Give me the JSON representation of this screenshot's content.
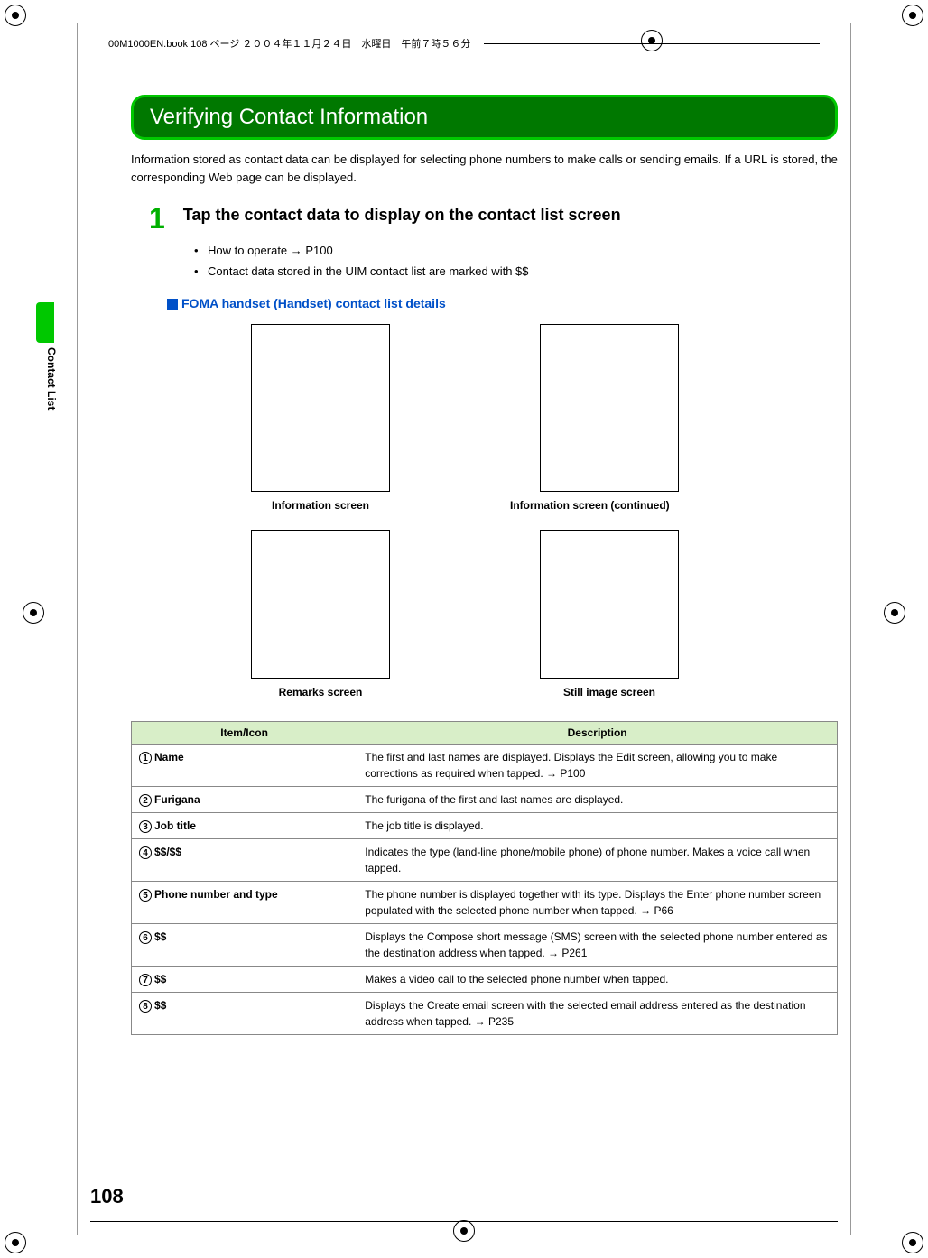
{
  "header": {
    "file_info": "00M1000EN.book  108 ページ  ２００４年１１月２４日　水曜日　午前７時５６分"
  },
  "side": {
    "tab_label": "Contact List"
  },
  "section": {
    "title": "Verifying Contact Information",
    "intro": "Information stored as contact data can be displayed for selecting phone numbers to make calls or sending emails. If a URL is stored, the corresponding Web page can be displayed."
  },
  "step": {
    "number": "1",
    "title": "Tap the contact data to display on the contact list screen",
    "bullets": [
      "How to operate → P100",
      "Contact data stored in the UIM contact list are marked with $$"
    ]
  },
  "subsection": {
    "title": "FOMA handset (Handset) contact list details"
  },
  "screenshots": [
    {
      "caption": "Information screen"
    },
    {
      "caption": "Information screen (continued)"
    },
    {
      "caption": "Remarks screen"
    },
    {
      "caption": "Still image screen"
    }
  ],
  "table": {
    "header_item": "Item/Icon",
    "header_desc": "Description",
    "header_bg": "#D8EEC8",
    "border_color": "#888888",
    "rows": [
      {
        "num": "1",
        "label": "Name",
        "desc": "The first and last names are displayed. Displays the Edit screen, allowing you to make corrections as required when tapped. → P100"
      },
      {
        "num": "2",
        "label": "Furigana",
        "desc": "The furigana of the first and last names are displayed."
      },
      {
        "num": "3",
        "label": "Job title",
        "desc": "The job title is displayed."
      },
      {
        "num": "4",
        "label": "$$/$$",
        "desc": "Indicates the type (land-line phone/mobile phone) of phone number. Makes a voice call when tapped."
      },
      {
        "num": "5",
        "label": "Phone number and type",
        "desc": "The phone number is displayed together with its type. Displays the Enter phone number screen populated with the selected phone number when tapped. → P66"
      },
      {
        "num": "6",
        "label": "$$",
        "desc": "Displays the Compose short message (SMS) screen with the selected phone number entered as the destination address when tapped. → P261"
      },
      {
        "num": "7",
        "label": "$$",
        "desc": "Makes a video call to the selected phone number when tapped."
      },
      {
        "num": "8",
        "label": "$$",
        "desc": "Displays the Create email screen with the selected email address entered as the destination address when tapped. → P235"
      }
    ]
  },
  "page_number": "108",
  "colors": {
    "green_outer": "#00C800",
    "green_inner": "#007800",
    "blue_heading": "#0050C8"
  }
}
